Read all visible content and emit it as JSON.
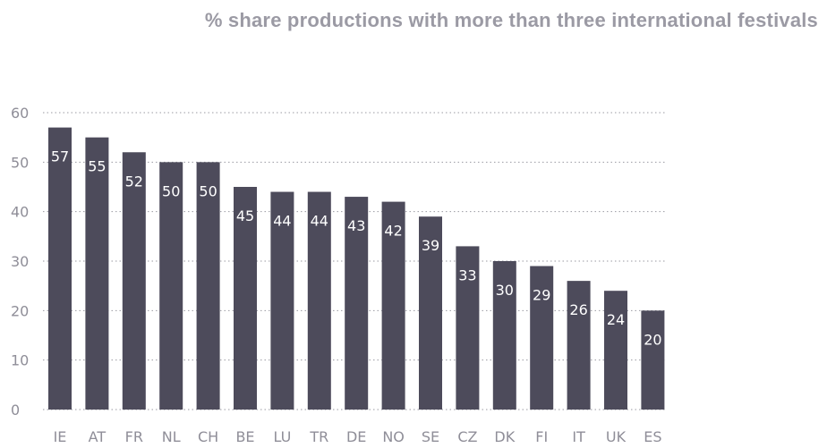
{
  "chart_data": {
    "type": "bar",
    "title": "% share productions with more than three international festivals",
    "categories": [
      "IE",
      "AT",
      "FR",
      "NL",
      "CH",
      "BE",
      "LU",
      "TR",
      "DE",
      "NO",
      "SE",
      "CZ",
      "DK",
      "FI",
      "IT",
      "UK",
      "ES"
    ],
    "values": [
      57,
      55,
      52,
      50,
      50,
      45,
      44,
      44,
      43,
      42,
      39,
      33,
      30,
      29,
      26,
      24,
      20
    ],
    "yticks": [
      0,
      10,
      20,
      30,
      40,
      50,
      60
    ],
    "ylim": [
      0,
      60
    ],
    "grid": true,
    "bar_color": "#4d4b5b",
    "label_color": "#ffffff",
    "tick_color": "#8f8e98"
  }
}
